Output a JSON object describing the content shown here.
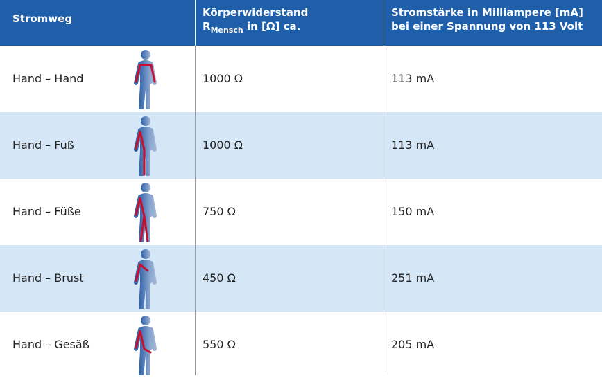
{
  "table": {
    "headers": [
      "Stromweg",
      {
        "line1": "Körperwiderstand",
        "r": "R",
        "sub": "Mensch",
        "rest": "in [Ω] ca."
      },
      {
        "line1": "Stromstärke in Milliampere [mA]",
        "line2": "bei einer Spannung von 113 Volt"
      }
    ],
    "rows": [
      [
        "Hand – Hand",
        "1000 Ω",
        "113 mA"
      ],
      [
        "Hand – Fuß",
        "1000 Ω",
        "113 mA"
      ],
      [
        "Hand – Füße",
        "750 Ω",
        "150 mA"
      ],
      [
        "Hand – Brust",
        "450 Ω",
        "251 mA"
      ],
      [
        "Hand – Gesäß",
        "550 Ω",
        "205 mA"
      ]
    ]
  }
}
